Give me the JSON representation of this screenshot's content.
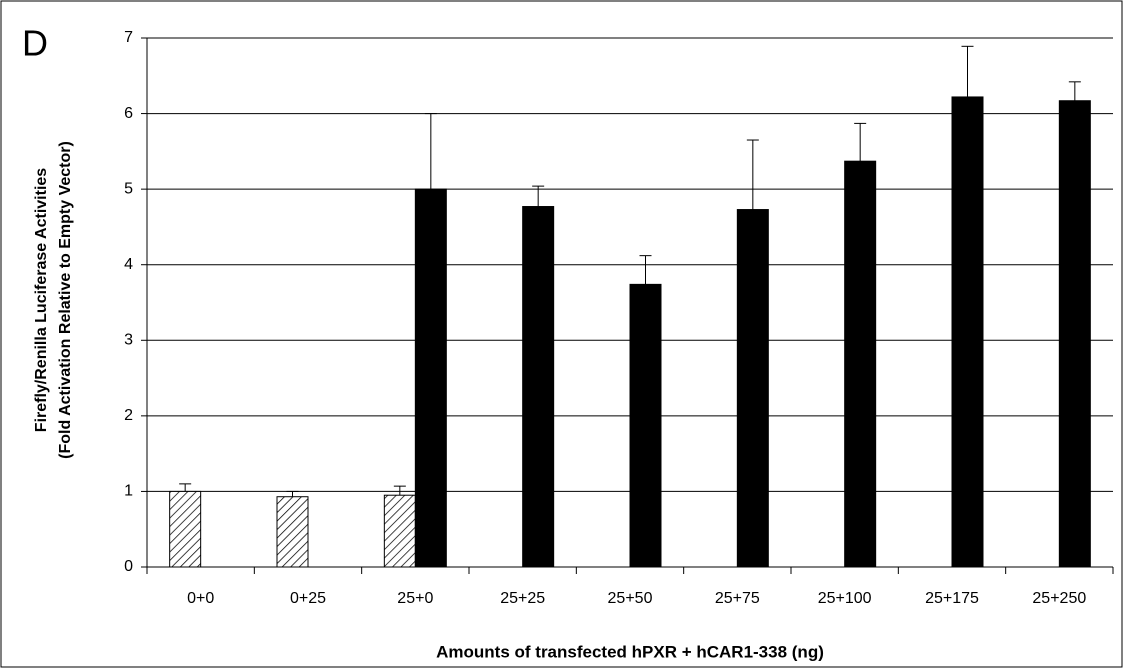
{
  "chart_data": {
    "type": "bar",
    "panel_label": "D",
    "ylabel": [
      "Firefly/Renilla Luciferase Activities",
      "(Fold Activation Relative to Empty Vector)"
    ],
    "xlabel": "Amounts of transfected hPXR + hCAR1-338 (ng)",
    "categories": [
      "0+0",
      "0+25",
      "25+0",
      "25+25",
      "25+50",
      "25+75",
      "25+100",
      "25+175",
      "25+250"
    ],
    "series": [
      {
        "color": "hatched",
        "values": [
          1.0,
          0.93,
          0.95,
          null,
          null,
          null,
          null,
          null,
          null
        ],
        "errors": [
          0.1,
          0.07,
          0.12,
          null,
          null,
          null,
          null,
          null,
          null
        ]
      },
      {
        "color": "#000000",
        "values": [
          null,
          null,
          5.0,
          4.77,
          3.74,
          4.73,
          5.37,
          6.22,
          6.17
        ],
        "errors": [
          null,
          null,
          1.0,
          0.27,
          0.38,
          0.92,
          0.5,
          0.67,
          0.25
        ]
      }
    ],
    "ylim": [
      0,
      7
    ],
    "yticks": [
      0,
      1,
      2,
      3,
      4,
      5,
      6,
      7
    ],
    "grid": true
  }
}
